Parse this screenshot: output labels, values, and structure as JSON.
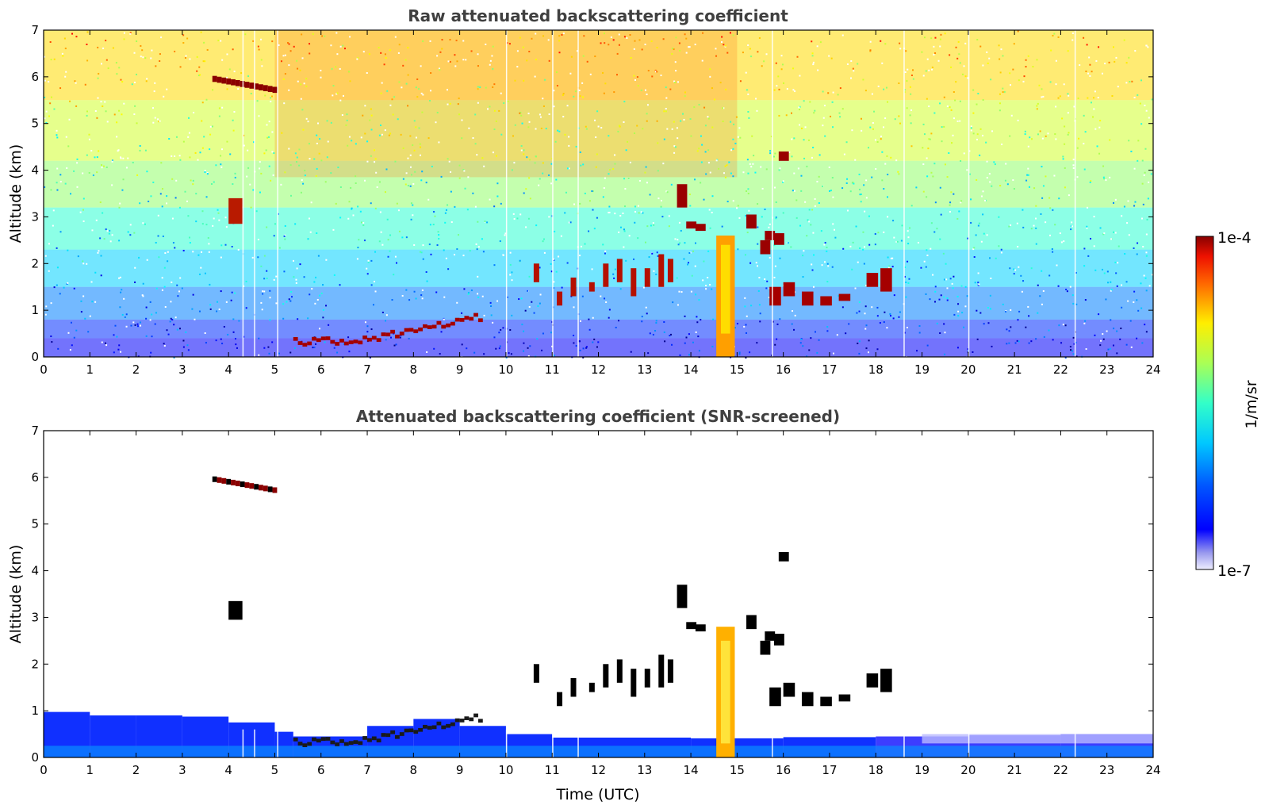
{
  "chart_data": [
    {
      "type": "heatmap",
      "title": "Raw attenuated backscattering coefficient",
      "xlabel": "",
      "ylabel": "Altitude (km)",
      "xlim": [
        0,
        24
      ],
      "ylim": [
        0,
        7
      ],
      "xticks": [
        "0",
        "1",
        "2",
        "3",
        "4",
        "5",
        "6",
        "7",
        "8",
        "9",
        "10",
        "11",
        "12",
        "13",
        "14",
        "15",
        "16",
        "17",
        "18",
        "19",
        "20",
        "21",
        "22",
        "23",
        "24"
      ],
      "yticks": [
        "0",
        "1",
        "2",
        "3",
        "4",
        "5",
        "6",
        "7"
      ],
      "screened": false,
      "features": [
        {
          "name": "elevated aerosol layer",
          "x": [
            3.7,
            5.1
          ],
          "y": [
            5.7,
            6.0
          ]
        },
        {
          "name": "aerosol patch",
          "x": [
            4.0,
            4.3
          ],
          "y": [
            2.8,
            3.4
          ]
        },
        {
          "name": "boundary layer top",
          "x": [
            5.4,
            9.5
          ],
          "y": [
            0.25,
            0.9
          ]
        },
        {
          "name": "scattered cloud layer",
          "x": [
            10.5,
            13.8
          ],
          "y": [
            1.2,
            2.2
          ]
        },
        {
          "name": "convective cloud",
          "x": [
            14.5,
            15.0
          ],
          "y": [
            0,
            2.8
          ]
        },
        {
          "name": "cloud",
          "x": [
            13.7,
            15.5
          ],
          "y": [
            2.6,
            3.7
          ]
        },
        {
          "name": "cloud",
          "x": [
            15.7,
            18.3
          ],
          "y": [
            1.1,
            1.9
          ]
        }
      ]
    },
    {
      "type": "heatmap",
      "title": "Attenuated backscattering coefficient (SNR-screened)",
      "xlabel": "Time (UTC)",
      "ylabel": "Altitude (km)",
      "xlim": [
        0,
        24
      ],
      "ylim": [
        0,
        7
      ],
      "xticks": [
        "0",
        "1",
        "2",
        "3",
        "4",
        "5",
        "6",
        "7",
        "8",
        "9",
        "10",
        "11",
        "12",
        "13",
        "14",
        "15",
        "16",
        "17",
        "18",
        "19",
        "20",
        "21",
        "22",
        "23",
        "24"
      ],
      "yticks": [
        "0",
        "1",
        "2",
        "3",
        "4",
        "5",
        "6",
        "7"
      ],
      "screened": true
    }
  ],
  "colorbar": {
    "label": "1/m/sr",
    "max_label": "1e-4",
    "min_label": "1e-7",
    "scale": "log",
    "colormap": "jet"
  }
}
